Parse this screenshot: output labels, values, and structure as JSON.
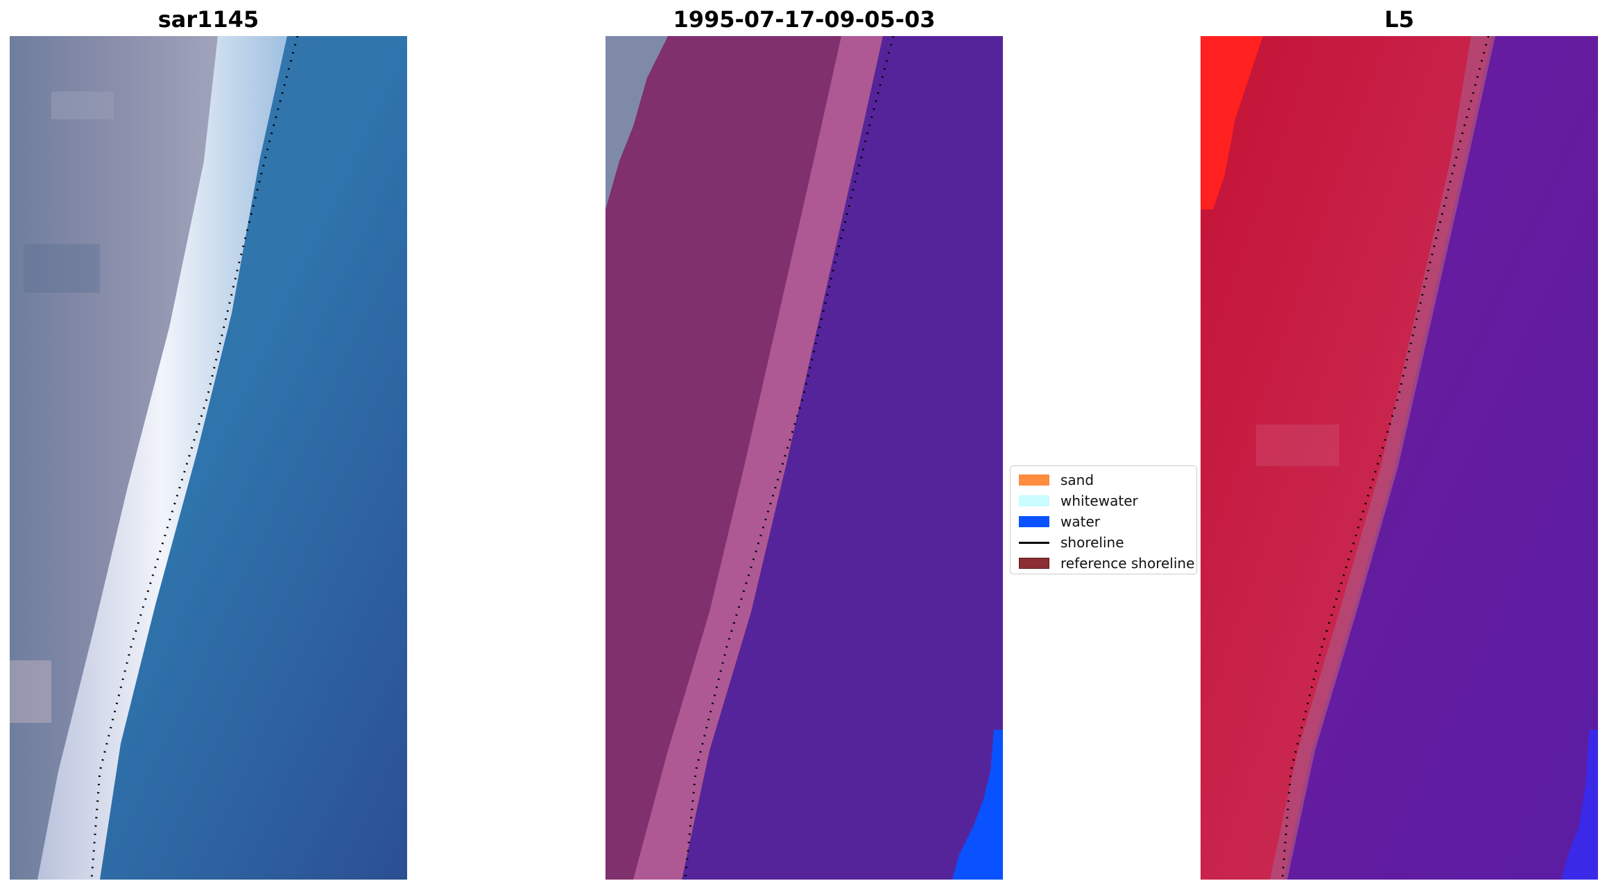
{
  "panels": {
    "left": {
      "title": "sar1145"
    },
    "middle": {
      "title": "1995-07-17-09-05-03"
    },
    "right": {
      "title": "L5"
    }
  },
  "legend": {
    "items": [
      {
        "label": "sand",
        "color": "#ff8c3f",
        "kind": "patch"
      },
      {
        "label": "whitewater",
        "color": "#c8fcff",
        "kind": "patch"
      },
      {
        "label": "water",
        "color": "#0a52ff",
        "kind": "patch"
      },
      {
        "label": "shoreline",
        "color": "#000000",
        "kind": "line"
      },
      {
        "label": "reference shoreline",
        "color": "#8b2f34",
        "kind": "patch"
      }
    ]
  },
  "colors": {
    "rgb_land": "#7b86a6",
    "rgb_whitewater": "#e8edf6",
    "rgb_water": "#2f70ab",
    "class_land": "#80306c",
    "class_beach": "#b35e98",
    "class_water": "#55249a",
    "class_blue": "#0a52ff",
    "mndwi_red": "#c0143c",
    "mndwi_purple": "#621e9e",
    "mndwi_bright_red": "#ff2020"
  }
}
